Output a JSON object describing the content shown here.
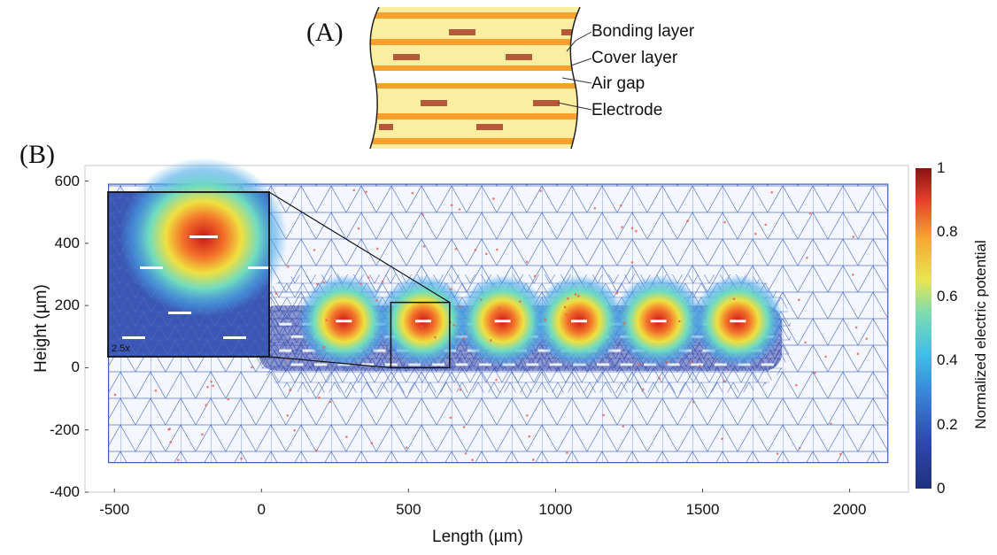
{
  "panel_a": {
    "label": "(A)",
    "callouts": {
      "bonding": "Bonding layer",
      "cover": "Cover layer",
      "airgap": "Air gap",
      "electrode": "Electrode"
    }
  },
  "panel_b": {
    "label": "(B)",
    "zoom_label": "2.5x",
    "x_axis": {
      "title": "Length (µm)",
      "ticks": [
        "-500",
        "0",
        "500",
        "1000",
        "1500",
        "2000"
      ],
      "range": [
        -600,
        2200
      ]
    },
    "y_axis": {
      "title": "Height (µm)",
      "ticks": [
        "600",
        "400",
        "200",
        "0",
        "-200",
        "-400"
      ],
      "range": [
        -400,
        650
      ]
    },
    "colorbar": {
      "title": "Normalized electric potential",
      "ticks": [
        "1",
        "0.8",
        "0.6",
        "0.4",
        "0.2",
        "0"
      ]
    },
    "electrode_x_um": [
      280,
      550,
      820,
      1080,
      1350,
      1620
    ],
    "colors": {
      "mesh": "#3a5bb8",
      "dense": "#2a3a9a",
      "node": "#e8604a"
    }
  }
}
